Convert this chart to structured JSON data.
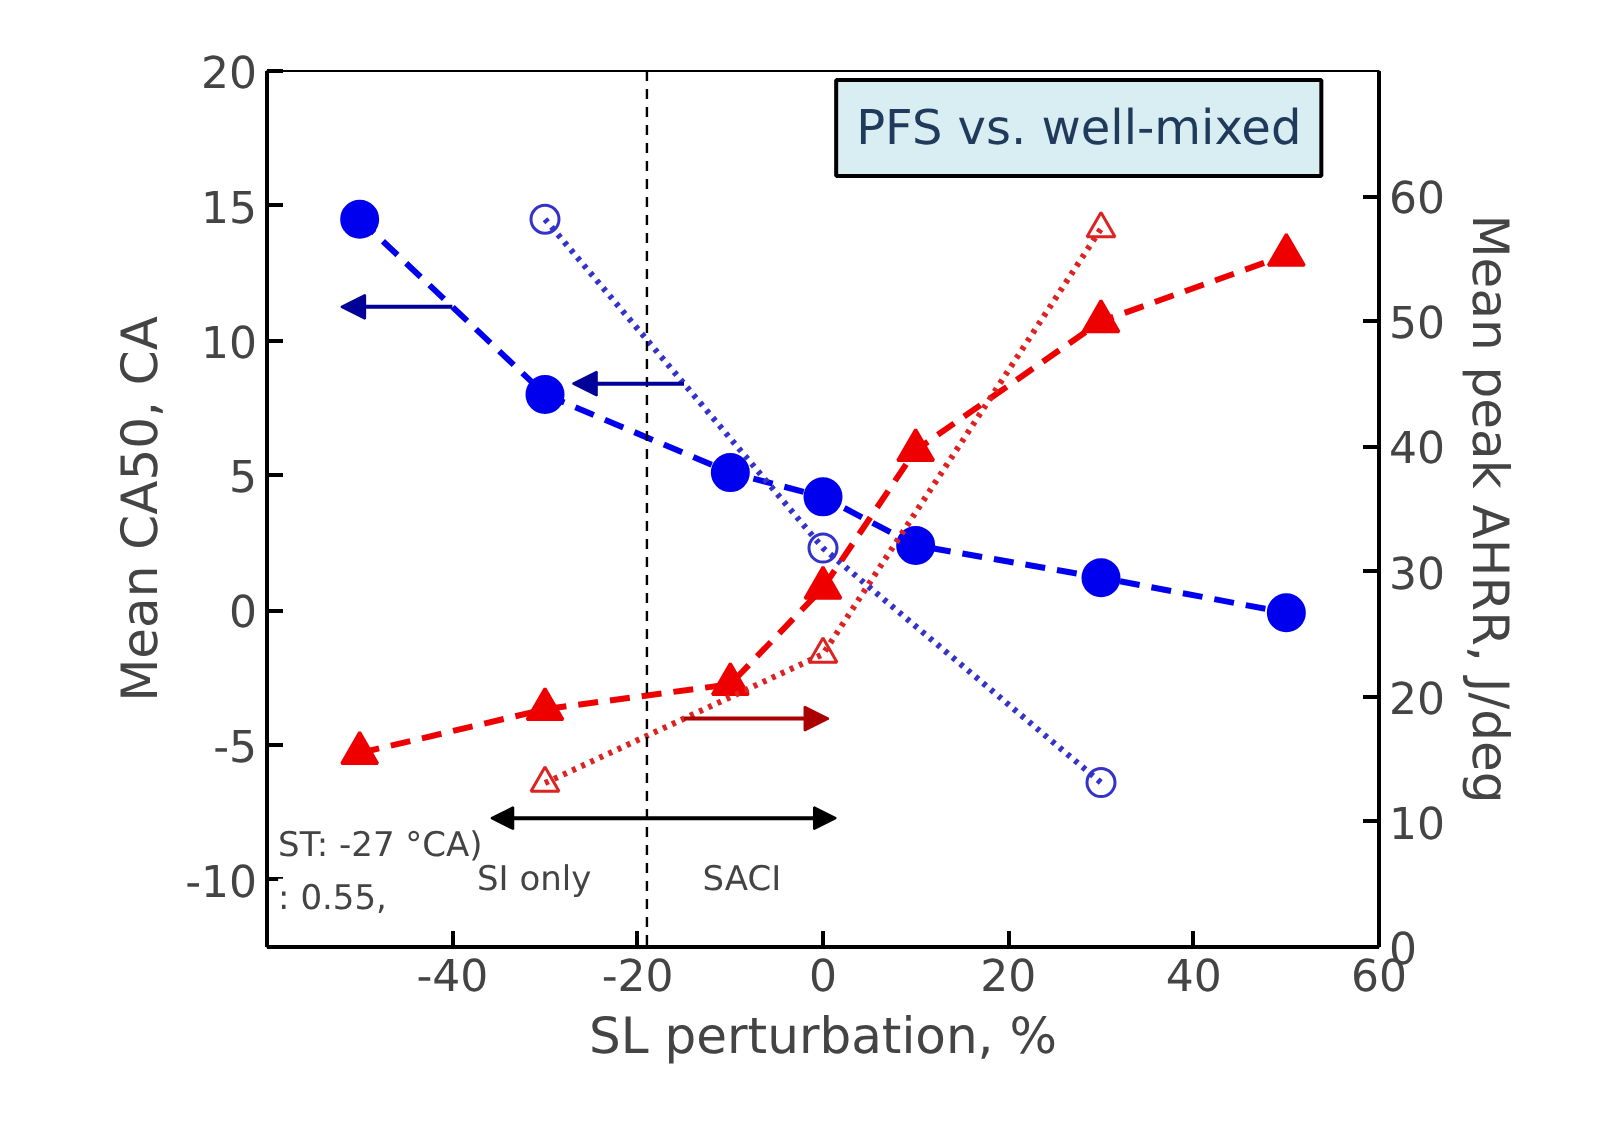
{
  "chart_data": {
    "type": "line",
    "title": "PFS vs. well-mixed",
    "xlabel": "SL perturbation, %",
    "ylabel": "Mean CA50, CA",
    "y2label": "Mean peak AHRR, J/deg",
    "x": [
      -50,
      -30,
      -10,
      0,
      10,
      30,
      50
    ],
    "series": [
      {
        "color": "#0000ee",
        "values": [
          14.5,
          8.0,
          5.1,
          4.2,
          2.4,
          1.2,
          -0.1
        ],
        "marker": "circle",
        "line_style": "dashed"
      },
      {
        "color": "#3333cc",
        "x": [
          -30,
          0,
          30
        ],
        "values": [
          14.5,
          2.3,
          -6.4
        ],
        "marker": "circle",
        "line_style": "dotted"
      },
      {
        "color": "#ee0000",
        "values": [
          15.5,
          19,
          21,
          28.7,
          39.7,
          50,
          55.3
        ],
        "marker": "triangle",
        "line_style": "dashed",
        "axis": "y2"
      },
      {
        "color": "#dd2222",
        "x": [
          -30,
          0,
          30
        ],
        "values": [
          13.1,
          23.4,
          57.4
        ],
        "marker": "triangle",
        "line_style": "dotted",
        "axis": "y2"
      }
    ],
    "xlim": [
      -60,
      60
    ],
    "xticks": [
      -40,
      -20,
      0,
      20,
      40,
      60
    ],
    "ylim": [
      -12.5,
      20
    ],
    "yticks": [
      -10,
      -5,
      0,
      5,
      10,
      15,
      20
    ],
    "y2lim": [
      0,
      70
    ],
    "y2ticks": [
      0,
      10,
      20,
      30,
      40,
      50,
      60
    ],
    "ref_lines": [
      {
        "axis": "x",
        "value": -19,
        "color": "#000000",
        "line_style": "dashed"
      }
    ],
    "annotations": [
      "SI only",
      "SACI",
      "ST: -27 °CA)",
      ": 0.55,"
    ],
    "grid": false
  }
}
